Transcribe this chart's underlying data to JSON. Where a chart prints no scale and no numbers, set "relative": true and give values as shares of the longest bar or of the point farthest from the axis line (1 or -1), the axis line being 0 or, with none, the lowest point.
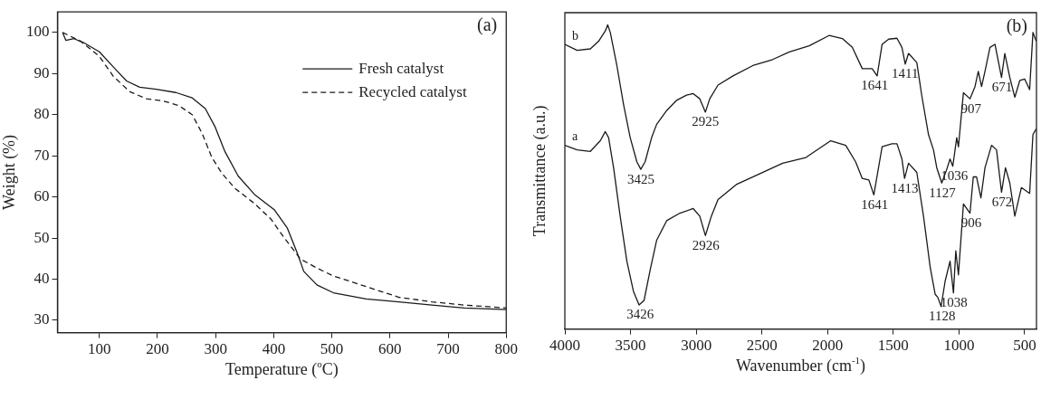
{
  "chart_data": [
    {
      "type": "line",
      "xlabel": "Temperature ($^{o}$C)",
      "ylabel": "Weight (%)",
      "xlim": [
        28,
        800
      ],
      "ylim": [
        27,
        105
      ],
      "xticks": [
        100,
        200,
        300,
        400,
        500,
        600,
        700,
        800
      ],
      "yticks": [
        30,
        40,
        50,
        60,
        70,
        80,
        90,
        100
      ],
      "legend": "top right",
      "annotations": [
        "(a)"
      ],
      "series": [
        {
          "name": "Fresh catalyst",
          "color": "#1a1a1a",
          "line_style": "solid",
          "x": [
            36.8,
            42.4,
            56.5,
            73.5,
            100,
            124.3,
            146.9,
            169.4,
            197.7,
            231.5,
            259.8,
            282.3,
            299.3,
            316.2,
            338.8,
            367,
            400.9,
            423.5,
            440.4,
            451.7,
            474.3,
            502.5,
            559,
            615.4,
            671.9,
            728.3,
            800
          ],
          "values": [
            100,
            98.1,
            98.5,
            97.5,
            95.3,
            91.6,
            88.2,
            86.7,
            86.2,
            85.4,
            84.1,
            81.5,
            77.0,
            71.0,
            65.1,
            60.6,
            56.9,
            52.4,
            46.4,
            41.9,
            38.6,
            36.7,
            35.2,
            34.5,
            33.7,
            33.0,
            32.6
          ]
        },
        {
          "name": "Recycled catalyst",
          "color": "#1a1a1a",
          "line_style": "dashed",
          "x": [
            36.8,
            67.8,
            100,
            124.3,
            152.5,
            180.7,
            208.9,
            237.2,
            259.8,
            276.7,
            293.6,
            310.6,
            333.2,
            367,
            395.3,
            417.8,
            446.1,
            474.3,
            502.5,
            559,
            615.4,
            671.9,
            728.3,
            800
          ],
          "values": [
            100,
            97.9,
            94.2,
            89.3,
            85.6,
            83.9,
            83.4,
            82.2,
            80.0,
            75.5,
            69.6,
            65.8,
            62.1,
            58.4,
            54.6,
            50.1,
            44.9,
            42.7,
            40.8,
            38.2,
            35.6,
            34.5,
            33.7,
            33.0
          ]
        }
      ]
    },
    {
      "type": "line",
      "relative": true,
      "xlabel": "Wavenumber (cm$^{-1}$)",
      "ylabel": "Transmittance (a.u.)",
      "xlim": [
        4000,
        410
      ],
      "xticks": [
        4000,
        3500,
        3000,
        2500,
        2000,
        1500,
        1000,
        500
      ],
      "annotations": [
        "(b)",
        {
          "text": "3425",
          "x": 3422,
          "y": 0.525
        },
        {
          "text": "2925",
          "x": 2930,
          "y": 0.713
        },
        {
          "text": "1641",
          "x": 1641,
          "y": 0.832
        },
        {
          "text": "1411",
          "x": 1411,
          "y": 0.871
        },
        {
          "text": "1127",
          "x": 1127,
          "y": 0.48
        },
        {
          "text": "1036",
          "x": 1036,
          "y": 0.535
        },
        {
          "text": "907",
          "x": 907,
          "y": 0.757
        },
        {
          "text": "671",
          "x": 671,
          "y": 0.827
        },
        {
          "text": "3426",
          "x": 3426,
          "y": 0.079
        },
        {
          "text": "2926",
          "x": 2926,
          "y": 0.307
        },
        {
          "text": "1641",
          "x": 1641,
          "y": 0.441
        },
        {
          "text": "1413",
          "x": 1413,
          "y": 0.495
        },
        {
          "text": "1128",
          "x": 1128,
          "y": 0.074
        },
        {
          "text": "1038",
          "x": 1038,
          "y": 0.119
        },
        {
          "text": "906",
          "x": 906,
          "y": 0.381
        },
        {
          "text": "672",
          "x": 672,
          "y": 0.45
        }
      ],
      "series": [
        {
          "name": "b",
          "color": "#1a1a1a",
          "x": [
            4000,
            3907,
            3806,
            3743,
            3692,
            3674,
            3654,
            3604,
            3553,
            3503,
            3452,
            3422,
            3389,
            3339,
            3301,
            3225,
            3149,
            3074,
            3023,
            2973,
            2930,
            2897,
            2834,
            2720,
            2569,
            2418,
            2291,
            2140,
            1989,
            1888,
            1812,
            1736,
            1661,
            1623,
            1585,
            1535,
            1472,
            1434,
            1409,
            1384,
            1321,
            1283,
            1232,
            1194,
            1169,
            1131,
            1093,
            1068,
            1047,
            1017,
            1004,
            966,
            916,
            878,
            853,
            828,
            802,
            764,
            726,
            676,
            651,
            613,
            575,
            537,
            500,
            462,
            437,
            412
          ],
          "values": [
            0.936,
            0.916,
            0.921,
            0.946,
            0.98,
            1.0,
            0.975,
            0.866,
            0.738,
            0.63,
            0.55,
            0.525,
            0.55,
            0.63,
            0.673,
            0.718,
            0.752,
            0.769,
            0.774,
            0.757,
            0.713,
            0.757,
            0.802,
            0.832,
            0.866,
            0.886,
            0.911,
            0.931,
            0.965,
            0.955,
            0.926,
            0.856,
            0.856,
            0.832,
            0.936,
            0.953,
            0.956,
            0.926,
            0.871,
            0.906,
            0.876,
            0.767,
            0.639,
            0.589,
            0.53,
            0.48,
            0.525,
            0.559,
            0.535,
            0.629,
            0.599,
            0.777,
            0.757,
            0.797,
            0.847,
            0.797,
            0.847,
            0.926,
            0.936,
            0.827,
            0.906,
            0.827,
            0.762,
            0.817,
            0.822,
            0.787,
            0.975,
            0.946
          ]
        },
        {
          "name": "a",
          "color": "#1a1a1a",
          "x": [
            4000,
            3907,
            3806,
            3730,
            3692,
            3667,
            3629,
            3579,
            3528,
            3478,
            3435,
            3397,
            3351,
            3301,
            3225,
            3124,
            3023,
            2973,
            2930,
            2885,
            2834,
            2695,
            2518,
            2342,
            2165,
            1976,
            1862,
            1787,
            1736,
            1686,
            1648,
            1585,
            1510,
            1472,
            1434,
            1414,
            1384,
            1321,
            1270,
            1219,
            1181,
            1161,
            1136,
            1105,
            1068,
            1042,
            1024,
            1004,
            966,
            916,
            891,
            866,
            833,
            802,
            752,
            714,
            676,
            646,
            613,
            575,
            525,
            462,
            437,
            412
          ],
          "values": [
            0.604,
            0.589,
            0.584,
            0.619,
            0.649,
            0.629,
            0.53,
            0.371,
            0.223,
            0.124,
            0.079,
            0.094,
            0.193,
            0.292,
            0.356,
            0.381,
            0.396,
            0.371,
            0.307,
            0.371,
            0.426,
            0.475,
            0.51,
            0.545,
            0.564,
            0.619,
            0.604,
            0.55,
            0.495,
            0.49,
            0.441,
            0.599,
            0.609,
            0.609,
            0.559,
            0.495,
            0.545,
            0.515,
            0.371,
            0.203,
            0.114,
            0.104,
            0.074,
            0.158,
            0.223,
            0.119,
            0.257,
            0.178,
            0.411,
            0.381,
            0.5,
            0.5,
            0.431,
            0.53,
            0.604,
            0.589,
            0.45,
            0.53,
            0.48,
            0.371,
            0.465,
            0.446,
            0.639,
            0.658
          ]
        }
      ]
    }
  ]
}
